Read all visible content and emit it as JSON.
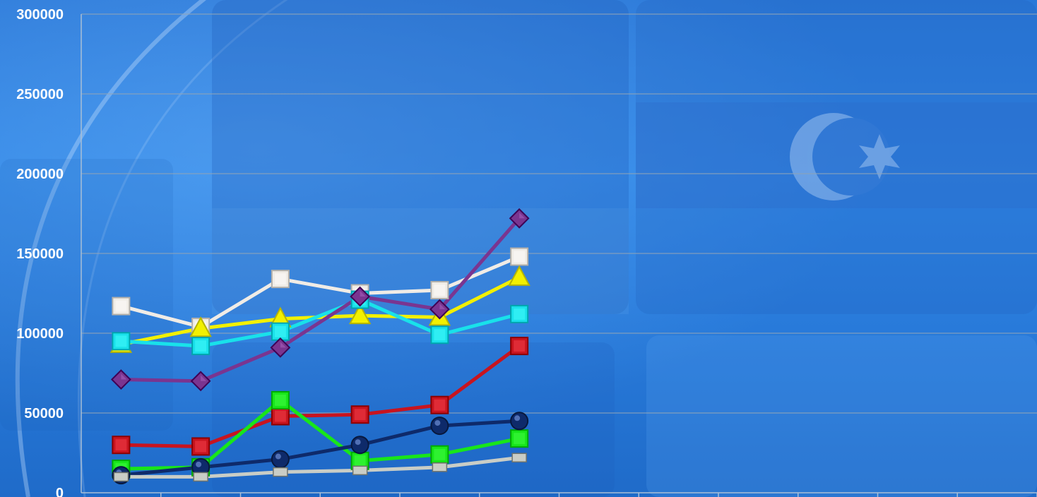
{
  "chart_data": {
    "type": "line",
    "x": [
      1,
      2,
      3,
      4,
      5,
      6
    ],
    "xlim": [
      0.5,
      12.5
    ],
    "ylim": [
      0,
      300000
    ],
    "yticks": [
      0,
      50000,
      100000,
      150000,
      200000,
      250000,
      300000
    ],
    "ytick_labels": [
      "0",
      "50000",
      "100000",
      "150000",
      "200000",
      "250000",
      "300000"
    ],
    "grid": "horizontal",
    "legend": "none",
    "series": [
      {
        "values": [
          117000,
          104000,
          134000,
          125000,
          127000,
          148000
        ],
        "color": "#f0ece6",
        "marker": "square"
      },
      {
        "values": [
          93000,
          103000,
          109000,
          111000,
          110000,
          135000
        ],
        "color": "#f2f000",
        "marker": "triangle"
      },
      {
        "values": [
          95000,
          92000,
          101000,
          121000,
          99000,
          112000
        ],
        "color": "#19e1ea",
        "marker": "square"
      },
      {
        "values": [
          71000,
          70000,
          91000,
          123000,
          115000,
          172000
        ],
        "color": "#7a3590",
        "marker": "diamond"
      },
      {
        "values": [
          30000,
          29000,
          48000,
          49000,
          55000,
          92000
        ],
        "color": "#c8141f",
        "marker": "square"
      },
      {
        "values": [
          15000,
          16000,
          58000,
          20000,
          24000,
          34000
        ],
        "color": "#18e61a",
        "marker": "square"
      },
      {
        "values": [
          11000,
          16000,
          21000,
          30000,
          42000,
          45000
        ],
        "color": "#0e2a6a",
        "marker": "circle"
      },
      {
        "values": [
          10000,
          10000,
          13000,
          14000,
          16000,
          22000
        ],
        "color": "#c9cdc6",
        "marker": "flatbox"
      }
    ]
  }
}
